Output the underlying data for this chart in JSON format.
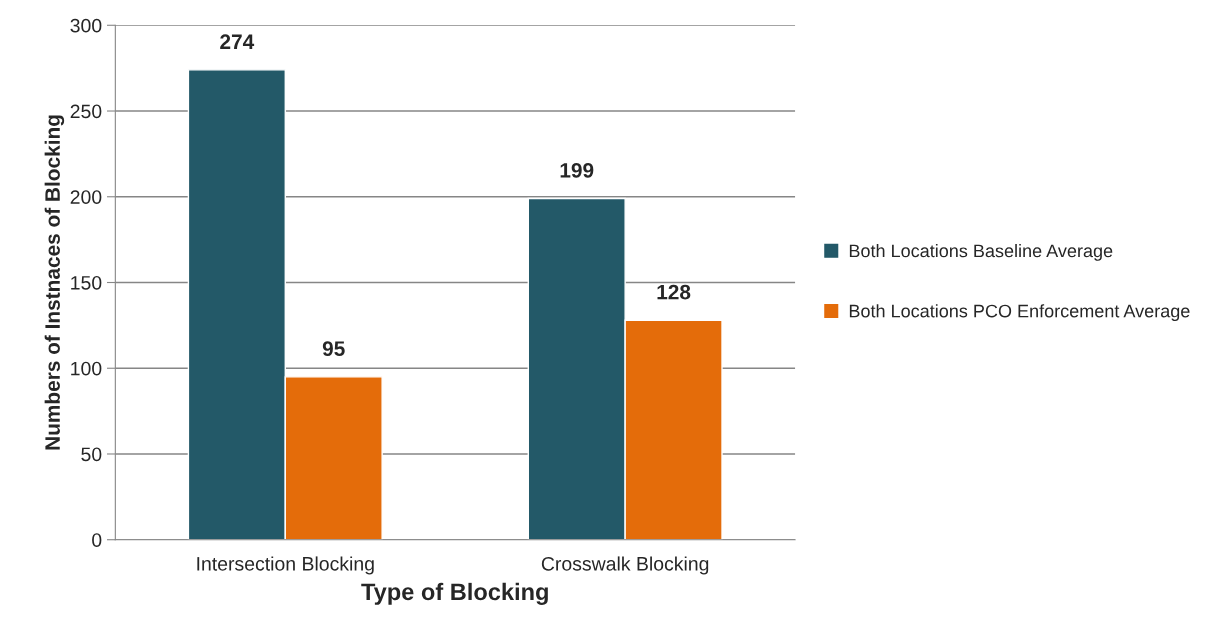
{
  "chart_data": {
    "type": "bar",
    "xlabel": "Type of Blocking",
    "ylabel": "Numbers of Instnaces of Blocking",
    "categories": [
      "Intersection Blocking",
      "Crosswalk Blocking"
    ],
    "series": [
      {
        "name": "Both Locations Baseline Average",
        "color": "#235968",
        "values": [
          274,
          199
        ]
      },
      {
        "name": "Both Locations PCO Enforcement Average",
        "color": "#e46c0a",
        "values": [
          95,
          128
        ]
      }
    ],
    "ylim": [
      0,
      300
    ],
    "yticks": [
      0,
      50,
      100,
      150,
      200,
      250,
      300
    ],
    "grid": "y",
    "legend": "right",
    "data_labels": true
  }
}
